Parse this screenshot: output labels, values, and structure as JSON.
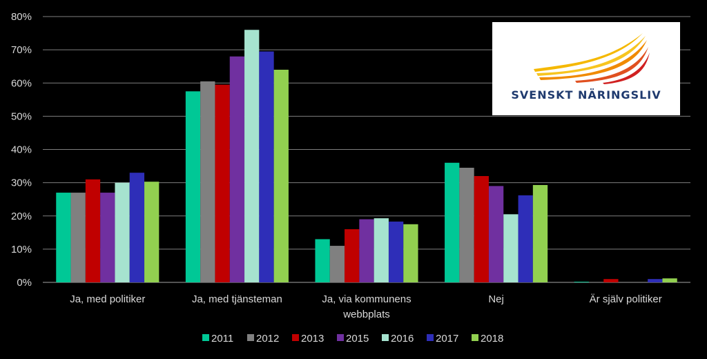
{
  "chart_data": {
    "type": "bar",
    "categories": [
      "Ja, med politiker",
      "Ja, med tjänsteman",
      "Ja, via kommunens|webbplats",
      "Nej",
      "Är själv politiker"
    ],
    "series": [
      {
        "name": "2011",
        "color": "#00c896",
        "values": [
          27,
          57.5,
          13,
          36,
          0.2
        ]
      },
      {
        "name": "2012",
        "color": "#808080",
        "values": [
          27,
          60.5,
          11,
          34.5,
          0
        ]
      },
      {
        "name": "2013",
        "color": "#c00000",
        "values": [
          31,
          59.5,
          16,
          32,
          1
        ]
      },
      {
        "name": "2015",
        "color": "#7030a0",
        "values": [
          27,
          68,
          19,
          29,
          0
        ]
      },
      {
        "name": "2016",
        "color": "#a6e3cf",
        "values": [
          30,
          76,
          19.3,
          20.5,
          0
        ]
      },
      {
        "name": "2017",
        "color": "#2e2eb8",
        "values": [
          33,
          69.5,
          18.3,
          26.2,
          1
        ]
      },
      {
        "name": "2018",
        "color": "#92d050",
        "values": [
          30.3,
          64,
          17.5,
          29.3,
          1.2
        ]
      }
    ],
    "ylim": [
      0,
      80
    ],
    "yticks": [
      "0%",
      "10%",
      "20%",
      "30%",
      "40%",
      "50%",
      "60%",
      "70%",
      "80%"
    ],
    "grid": true,
    "legend_position": "bottom"
  },
  "logo": {
    "text": "SVENSKT NÄRINGSLIV",
    "colors": [
      "#f5b800",
      "#f08a00",
      "#e03020"
    ]
  }
}
